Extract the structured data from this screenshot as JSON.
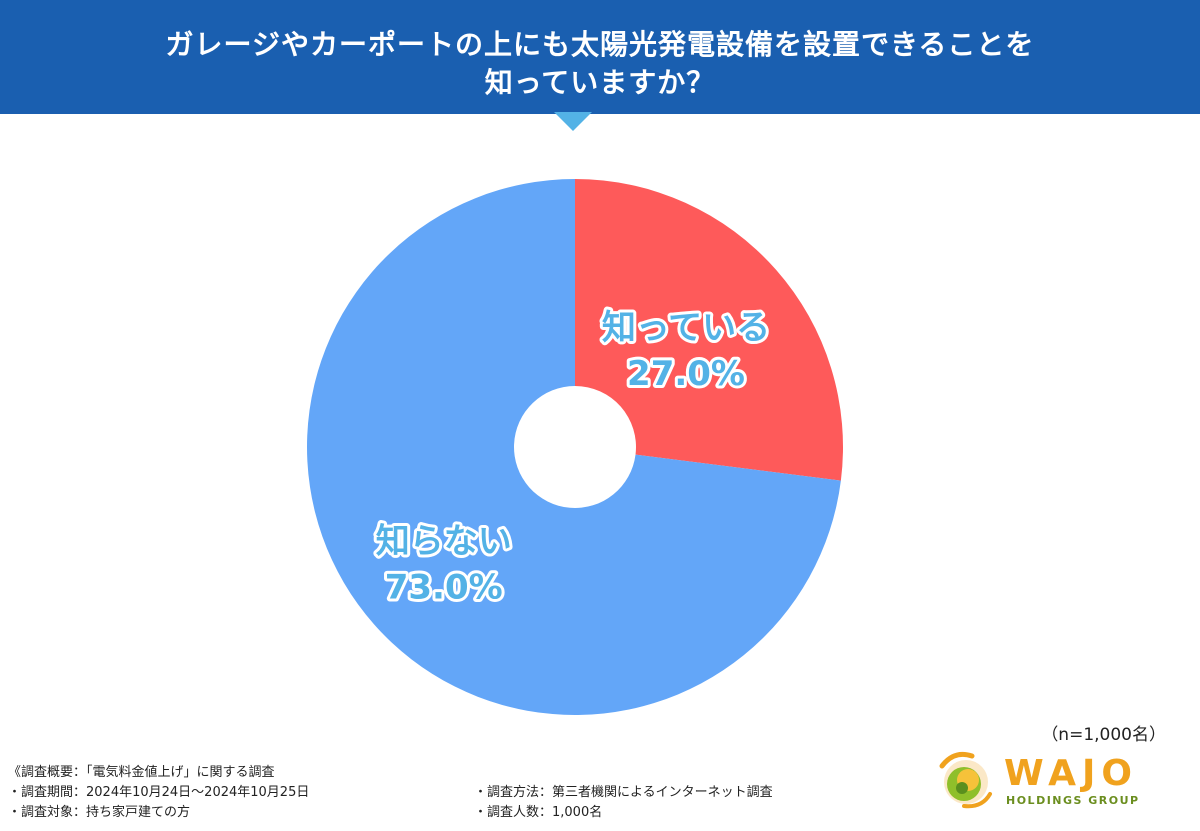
{
  "header": {
    "title_line1": "ガレージやカーポートの上にも太陽光発電設備を設置できることを",
    "title_line2": "知っていますか？"
  },
  "chart_data": {
    "type": "pie",
    "donut": true,
    "slices": [
      {
        "label": "知っている",
        "value": 27.0,
        "display": "27.0%",
        "color": "#fe5a5a"
      },
      {
        "label": "知らない",
        "value": 73.0,
        "display": "73.0%",
        "color": "#63a6f8"
      }
    ],
    "start": "12 o'clock",
    "direction": "clockwise",
    "label_color": "#53b2e6"
  },
  "sample_size": "（n=1,000名）",
  "survey": {
    "overview": "《調査概要：「電気料金値上げ」に関する調査",
    "period": "・調査期間：2024年10月24日〜2024年10月25日",
    "target": "・調査対象：持ち家戸建ての方",
    "method": "・調査方法：第三者機関によるインターネット調査",
    "respondents": "・調査人数：1,000名"
  },
  "logo": {
    "wordmark": "WAJO",
    "subtitle": "HOLDINGS GROUP"
  },
  "colors": {
    "header_bg": "#1a5fb0",
    "arrow": "#53b2e6",
    "brand_orange": "#f0a21e",
    "brand_green": "#6b8e1f"
  }
}
